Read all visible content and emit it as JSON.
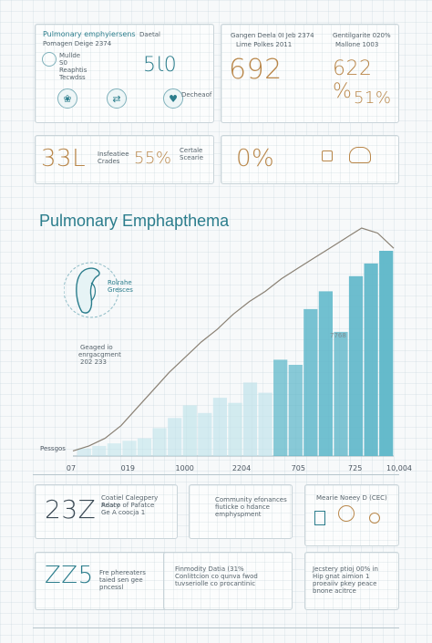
{
  "top_left_card": {
    "title": "Pulmonary emphyiersens",
    "subtitle": "Pomagen Deige 2374",
    "tag": "Daetal",
    "lines": [
      "Mullde",
      "S0",
      "Reaphtis",
      "Tecwdss"
    ],
    "big_value": "5Ɩ0",
    "icon_label": "Decheaof",
    "icons": [
      "lungs-icon",
      "shield-icon",
      "heart-icon"
    ]
  },
  "top_right_card": {
    "left_text": [
      "Gangen Deela 0I Jeb 2374",
      "Lime Polkes 2011"
    ],
    "right_text": [
      "Gentilgarite 020%",
      "Mallone 1003"
    ],
    "big_left": "692",
    "big_right": "622 %",
    "big_small": "51%"
  },
  "mid_left_card": {
    "big_left": "33L",
    "note_left": [
      "Insfeatiee",
      "Crades"
    ],
    "big_right": "55%",
    "note_right": [
      "Certale",
      "Scearie"
    ]
  },
  "mid_right_card": {
    "big_value": "0%",
    "icons": [
      "patient-icon",
      "capsule-icon"
    ]
  },
  "chart_title": "Pulmonary Emphapthema",
  "lung_caption": [
    "Geaged io",
    "enrgacgment",
    "202 233"
  ],
  "lung_side": [
    "Rolrahe",
    "Gresces"
  ],
  "chart_data": {
    "type": "bar",
    "title": "Pulmonary Emphapthema",
    "categories_count": 21,
    "values": [
      3,
      4,
      5,
      6,
      7,
      11,
      15,
      20,
      17,
      23,
      21,
      29,
      25,
      38,
      36,
      58,
      65,
      49,
      71,
      76,
      81
    ],
    "trend": [
      2,
      4,
      7,
      12,
      19,
      26,
      33,
      39,
      45,
      50,
      56,
      61,
      65,
      70,
      74,
      78,
      82,
      86,
      90,
      88,
      82
    ],
    "xtick_labels": [
      "07",
      "019",
      "1000",
      "2204",
      "705",
      "725",
      "10,004"
    ],
    "ylabel": "Pessgos",
    "annotation": "7768",
    "ylim": [
      0,
      90
    ],
    "colors": {
      "bar_light": "#bfe3ea",
      "bar_dark": "#5fb7c9",
      "trend": "#8a8174"
    }
  },
  "bottom_row1": {
    "big_value": "23Z",
    "left_text": [
      "Coatiel Calegpery Adaty",
      "Reaco of Pafatce",
      "Ge A coocja 1"
    ],
    "mid_text": [
      "Community efonances",
      "fiuticke o hdance",
      "emphyspment"
    ],
    "right_label": "Mearie Noeey D (CEC)"
  },
  "bottom_row2": {
    "big_value": "ZZ5",
    "left_text": [
      "Fre phereaters",
      "taied sen gee",
      "pncessl"
    ],
    "mid_text": [
      "Finmodity Datia (31%",
      "Conlittcion co qunva fwod",
      "tuvseriolle co procantinic"
    ],
    "right_text": [
      "Jecstery ptioj 00% in",
      "Hip gnat aimion 1",
      "proeaiiv pkey peace",
      "bnone acitrce"
    ]
  },
  "colors": {
    "accent": "#2b7d8c",
    "warm": "#b9874a"
  }
}
